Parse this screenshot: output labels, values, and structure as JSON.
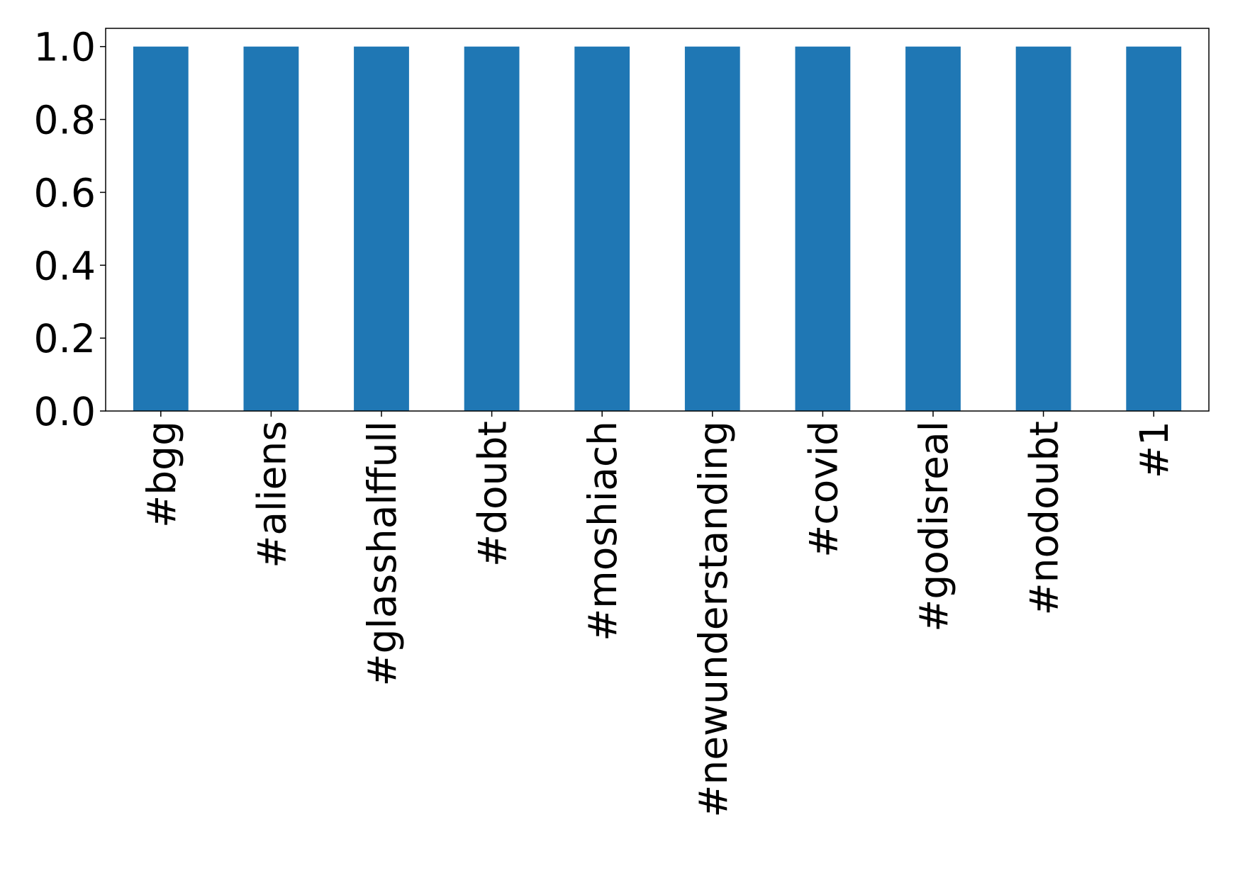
{
  "chart_data": {
    "type": "bar",
    "categories": [
      "#bgg",
      "#aliens",
      "#glasshalffull",
      "#doubt",
      "#moshiach",
      "#newunderstanding",
      "#covid",
      "#godisreal",
      "#nodoubt",
      "#1"
    ],
    "values": [
      1,
      1,
      1,
      1,
      1,
      1,
      1,
      1,
      1,
      1
    ],
    "color": "#1f77b4",
    "ylim": [
      0,
      1.05
    ],
    "yticks": [
      {
        "value": 0,
        "label": "0.0"
      },
      0.2,
      0.4,
      0.6,
      0.8,
      {
        "value": 1,
        "label": "1.0"
      }
    ],
    "grid": false
  }
}
